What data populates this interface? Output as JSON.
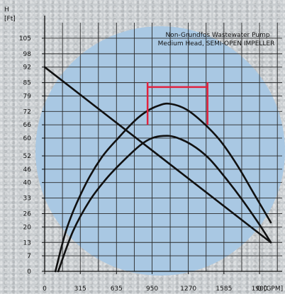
{
  "chart_data": {
    "type": "line",
    "title": "Non-Grundfos Wastewater Pump",
    "subtitle": "Medium Head, SEMI-OPEN IMPELLER",
    "ylabel": "H",
    "yunit": "[Ft]",
    "xlabel": "Q [GPM]",
    "x_ticks": [
      0,
      315,
      635,
      950,
      1270,
      1585,
      1900
    ],
    "y_ticks": [
      0,
      7,
      13,
      20,
      26,
      33,
      40,
      46,
      52,
      60,
      66,
      72,
      79,
      85,
      92,
      98,
      105
    ],
    "xlim": [
      0,
      2100
    ],
    "ylim": [
      0,
      112
    ],
    "grid": true,
    "colors": {
      "background_circle": "#a9c8e3",
      "curve": "#111111",
      "range_marker": "#e0233f",
      "grid": "#2a2a2a"
    },
    "series": [
      {
        "kind": "curve",
        "x": [
          95,
          200,
          350,
          500,
          650,
          800,
          900,
          1000,
          1100,
          1250,
          1400,
          1550,
          1700,
          1850,
          2000
        ],
        "y": [
          0,
          20,
          38,
          51,
          60,
          68,
          72,
          74.5,
          75.5,
          73,
          67,
          59,
          48,
          35,
          22
        ]
      },
      {
        "kind": "curve",
        "x": [
          120,
          250,
          400,
          550,
          700,
          850,
          950,
          1050,
          1150,
          1300,
          1450,
          1600,
          1750,
          1900,
          2000
        ],
        "y": [
          0,
          18,
          32,
          42,
          50,
          57,
          60,
          61,
          60.5,
          57,
          51,
          42,
          32,
          21,
          13
        ]
      },
      {
        "kind": "straight",
        "x": [
          0,
          2000
        ],
        "y": [
          92,
          13
        ]
      }
    ],
    "range_marker": {
      "x_start": 910,
      "x_end": 1440,
      "y_top": 83,
      "y_bottom": 66
    }
  }
}
